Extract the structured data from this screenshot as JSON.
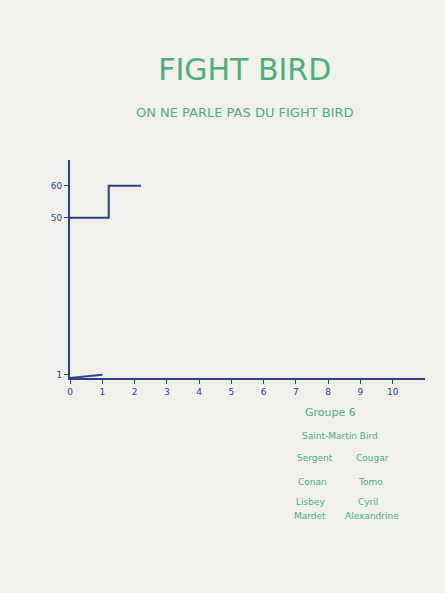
{
  "chart_data": {
    "type": "line",
    "title": "FIGHT BIRD",
    "subtitle": "ON NE PARLE PAS DU FIGHT BIRD",
    "xlim": [
      0,
      11
    ],
    "xticks": [
      0,
      1,
      2,
      3,
      4,
      5,
      6,
      7,
      8,
      9,
      10
    ],
    "ylim": [
      0,
      68
    ],
    "yticks": [
      1,
      50,
      60
    ],
    "grid": false,
    "series": [
      {
        "color": "#2b3f8c",
        "x": [
          0,
          1
        ],
        "values": [
          0,
          1
        ],
        "line_style": "solid"
      },
      {
        "color": "#2b3f8c",
        "x": [
          0,
          1.2,
          1.2,
          2.2
        ],
        "values": [
          50,
          50,
          60,
          60
        ],
        "line_style": "solid"
      }
    ],
    "annotations": [
      "Groupe 6",
      "Saint-Martin Bird",
      "Sergent",
      "Cougar",
      "Conan",
      "Tomo",
      "Lisbey",
      "Cyril",
      "Mardet",
      "Alexandrine"
    ]
  }
}
